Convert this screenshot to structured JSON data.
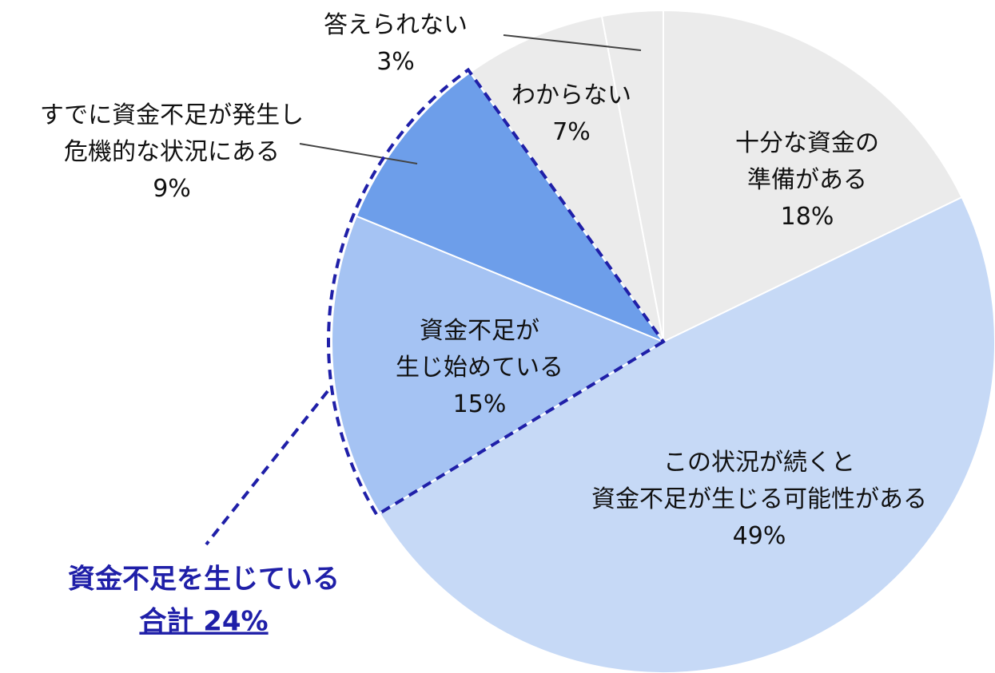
{
  "chart_data": {
    "type": "pie",
    "categories": [
      [
        "十分な資金の",
        "準備がある"
      ],
      [
        "この状況が続くと",
        "資金不足が生じる可能性がある"
      ],
      [
        "資金不足が",
        "生じ始めている"
      ],
      [
        "すでに資金不足が発生し",
        "危機的な状況にある"
      ],
      [
        "わからない"
      ],
      [
        "答えられない"
      ]
    ],
    "values": [
      18,
      49,
      15,
      9,
      7,
      3
    ],
    "value_labels": [
      "18%",
      "49%",
      "15%",
      "9%",
      "7%",
      "3%"
    ],
    "colors": [
      "#ebebeb",
      "#c6d9f6",
      "#a5c3f3",
      "#6d9eea",
      "#ebebeb",
      "#ebebeb"
    ],
    "annotation": {
      "text": "資金不足を生じている",
      "total": "合計 24%"
    }
  }
}
